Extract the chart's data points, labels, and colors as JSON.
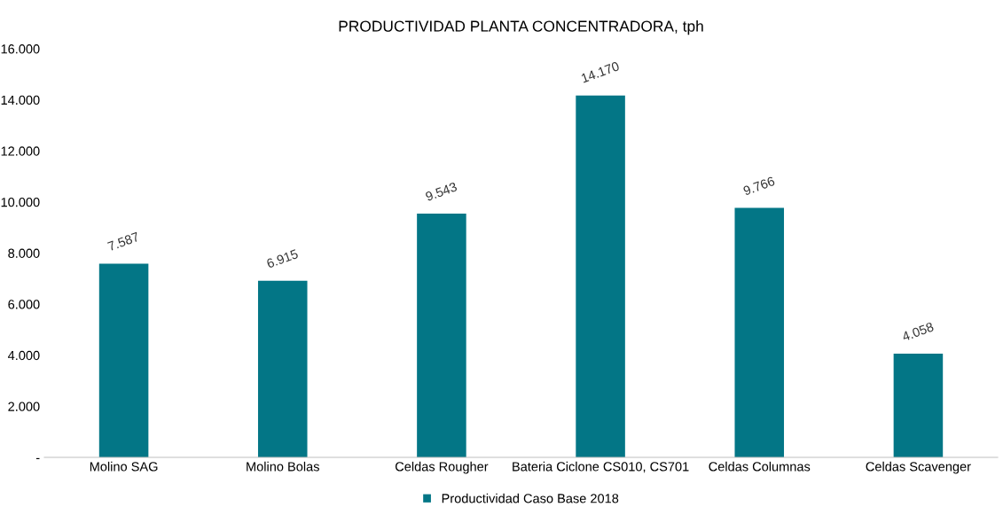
{
  "chart_data": {
    "type": "bar",
    "title": "PRODUCTIVIDAD PLANTA CONCENTRADORA, tph",
    "categories": [
      "Molino SAG",
      "Molino Bolas",
      "Celdas Rougher",
      "Bateria Ciclone CS010, CS701",
      "Celdas Columnas",
      "Celdas Scavenger"
    ],
    "series": [
      {
        "name": "Productividad Caso Base 2018",
        "color": "#037686",
        "values": [
          7587,
          6915,
          9543,
          14170,
          9766,
          4058
        ],
        "value_labels": [
          "7.587",
          "6.915",
          "9.543",
          "14.170",
          "9.766",
          "4.058"
        ]
      }
    ],
    "ylim": [
      0,
      16000
    ],
    "yticks": [
      {
        "value": 0,
        "label": "-"
      },
      {
        "value": 2000,
        "label": "2.000"
      },
      {
        "value": 4000,
        "label": "4.000"
      },
      {
        "value": 6000,
        "label": "6.000"
      },
      {
        "value": 8000,
        "label": "8.000"
      },
      {
        "value": 10000,
        "label": "10.000"
      },
      {
        "value": 12000,
        "label": "12.000"
      },
      {
        "value": 14000,
        "label": "14.000"
      },
      {
        "value": 16000,
        "label": "16.000"
      }
    ],
    "grid": false,
    "legend": "bottom"
  }
}
